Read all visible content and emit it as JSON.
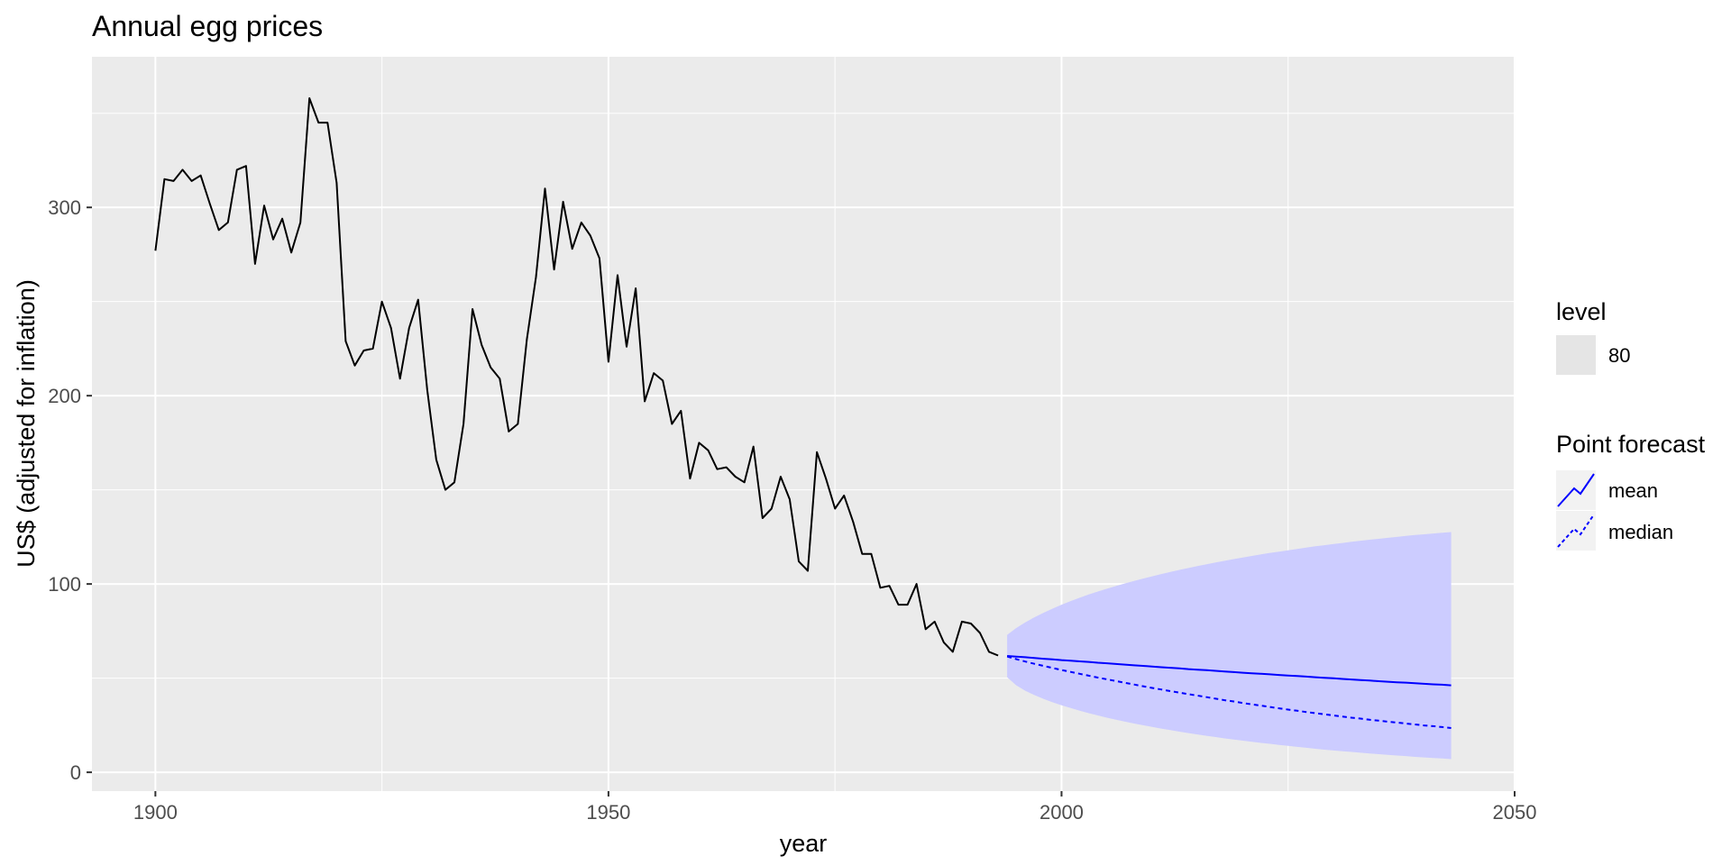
{
  "chart_data": {
    "type": "line",
    "title": "Annual egg prices",
    "xlabel": "year",
    "ylabel": "US$ (adjusted for inflation)",
    "xlim": [
      1893,
      2050
    ],
    "ylim": [
      -10,
      380
    ],
    "x_ticks": [
      1900,
      1950,
      2000,
      2050
    ],
    "y_ticks": [
      0,
      100,
      200,
      300
    ],
    "grid": true,
    "legend_position": "right",
    "colors": {
      "panel": "#ebebeb",
      "grid": "#ffffff",
      "history": "#000000",
      "forecast": "#0000ff",
      "interval": "#ccccff",
      "legend_key": "#e5e5e5",
      "legend_key_lines": "#f2f2f2",
      "tick_mark": "#333333"
    },
    "history": {
      "x": [
        1900,
        1901,
        1902,
        1903,
        1904,
        1905,
        1906,
        1907,
        1908,
        1909,
        1910,
        1911,
        1912,
        1913,
        1914,
        1915,
        1916,
        1917,
        1918,
        1919,
        1920,
        1921,
        1922,
        1923,
        1924,
        1925,
        1926,
        1927,
        1928,
        1929,
        1930,
        1931,
        1932,
        1933,
        1934,
        1935,
        1936,
        1937,
        1938,
        1939,
        1940,
        1941,
        1942,
        1943,
        1944,
        1945,
        1946,
        1947,
        1948,
        1949,
        1950,
        1951,
        1952,
        1953,
        1954,
        1955,
        1956,
        1957,
        1958,
        1959,
        1960,
        1961,
        1962,
        1963,
        1964,
        1965,
        1966,
        1967,
        1968,
        1969,
        1970,
        1971,
        1972,
        1973,
        1974,
        1975,
        1976,
        1977,
        1978,
        1979,
        1980,
        1981,
        1982,
        1983,
        1984,
        1985,
        1986,
        1987,
        1988,
        1989,
        1990,
        1991,
        1992,
        1993
      ],
      "values": [
        277,
        315,
        314,
        320,
        314,
        317,
        302,
        288,
        292,
        320,
        322,
        270,
        301,
        283,
        294,
        276,
        292,
        358,
        345,
        345,
        313,
        229,
        216,
        224,
        225,
        250,
        236,
        209,
        236,
        251,
        203,
        166,
        150,
        154,
        185,
        246,
        227,
        215,
        209,
        181,
        185,
        230,
        263,
        310,
        267,
        303,
        278,
        292,
        285,
        273,
        218,
        264,
        226,
        257,
        197,
        212,
        208,
        185,
        192,
        156,
        175,
        171,
        161,
        162,
        157,
        154,
        173,
        135,
        140,
        157,
        145,
        112,
        107,
        170,
        156,
        140,
        147,
        133,
        116,
        116,
        98,
        99,
        89,
        89,
        100,
        76,
        80,
        69,
        64,
        80,
        79,
        74,
        64,
        62
      ]
    },
    "forecast": {
      "x": [
        1994,
        1995,
        1996,
        1997,
        1998,
        1999,
        2000,
        2001,
        2002,
        2003,
        2004,
        2005,
        2006,
        2007,
        2008,
        2009,
        2010,
        2011,
        2012,
        2013,
        2014,
        2015,
        2016,
        2017,
        2018,
        2019,
        2020,
        2021,
        2022,
        2023,
        2024,
        2025,
        2026,
        2027,
        2028,
        2029,
        2030,
        2031,
        2032,
        2033,
        2034,
        2035,
        2036,
        2037,
        2038,
        2039,
        2040,
        2041,
        2042,
        2043
      ],
      "series": [
        {
          "name": "mean",
          "style": "solid",
          "values": [
            61.8,
            61.4,
            61.1,
            60.7,
            60.3,
            60.0,
            59.6,
            59.3,
            58.9,
            58.6,
            58.2,
            57.9,
            57.5,
            57.2,
            56.8,
            56.5,
            56.2,
            55.8,
            55.5,
            55.2,
            54.8,
            54.5,
            54.2,
            53.9,
            53.5,
            53.2,
            52.9,
            52.6,
            52.3,
            52.0,
            51.7,
            51.4,
            51.1,
            50.8,
            50.5,
            50.2,
            49.9,
            49.6,
            49.3,
            49.0,
            48.7,
            48.4,
            48.1,
            47.8,
            47.6,
            47.3,
            47.0,
            46.7,
            46.5,
            46.2
          ]
        },
        {
          "name": "median",
          "style": "dashed",
          "values": [
            61.5,
            60.1,
            58.8,
            57.6,
            56.5,
            55.4,
            54.3,
            53.3,
            52.3,
            51.3,
            50.3,
            49.4,
            48.5,
            47.5,
            46.6,
            45.7,
            44.8,
            44.0,
            43.1,
            42.3,
            41.5,
            40.7,
            39.9,
            39.1,
            38.3,
            37.6,
            36.8,
            36.1,
            35.4,
            34.7,
            34.0,
            33.3,
            32.7,
            32.0,
            31.4,
            30.8,
            30.2,
            29.6,
            29.0,
            28.5,
            27.9,
            27.4,
            26.9,
            26.4,
            25.9,
            25.4,
            24.9,
            24.5,
            24.0,
            23.5
          ]
        }
      ],
      "interval": {
        "level": 80,
        "lower": [
          50.5,
          46.2,
          43.3,
          41.0,
          39.0,
          37.2,
          35.6,
          34.1,
          32.7,
          31.4,
          30.2,
          29.0,
          27.9,
          26.9,
          25.9,
          25.0,
          24.1,
          23.2,
          22.4,
          21.6,
          20.8,
          20.1,
          19.4,
          18.7,
          18.0,
          17.4,
          16.8,
          16.2,
          15.6,
          15.1,
          14.5,
          14.0,
          13.5,
          13.0,
          12.5,
          12.0,
          11.6,
          11.2,
          10.8,
          10.4,
          10.0,
          9.6,
          9.3,
          8.9,
          8.6,
          8.2,
          7.9,
          7.6,
          7.3,
          7.0
        ],
        "upper": [
          73.0,
          76.6,
          79.6,
          82.3,
          84.7,
          86.9,
          89.0,
          90.9,
          92.7,
          94.4,
          96.0,
          97.5,
          98.9,
          100.3,
          101.6,
          102.9,
          104.1,
          105.3,
          106.4,
          107.5,
          108.5,
          109.5,
          110.5,
          111.4,
          112.3,
          113.2,
          114.1,
          114.9,
          115.7,
          116.5,
          117.2,
          117.9,
          118.6,
          119.3,
          120.0,
          120.6,
          121.2,
          121.8,
          122.4,
          123.0,
          123.5,
          124.0,
          124.5,
          125.0,
          125.5,
          126.0,
          126.4,
          126.8,
          127.2,
          127.6
        ]
      }
    },
    "legend": {
      "level_title": "level",
      "level_entries": [
        "80"
      ],
      "forecast_title": "Point forecast",
      "forecast_entries": [
        "mean",
        "median"
      ]
    }
  }
}
